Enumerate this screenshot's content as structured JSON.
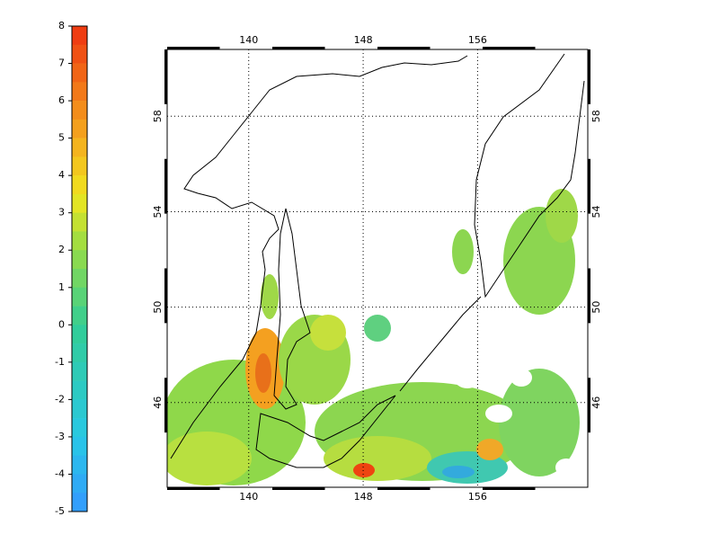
{
  "colorbar": {
    "lim": [
      -5,
      8
    ],
    "ticks": [
      -5,
      -4,
      -3,
      -2,
      -1,
      0,
      1,
      2,
      3,
      4,
      5,
      6,
      7,
      8
    ]
  },
  "map": {
    "xlim": [
      134.3,
      163.7
    ],
    "ylim": [
      42.45,
      60.8
    ],
    "xticks": [
      140,
      148,
      156
    ],
    "yticks": [
      46,
      50,
      54,
      58
    ]
  }
}
